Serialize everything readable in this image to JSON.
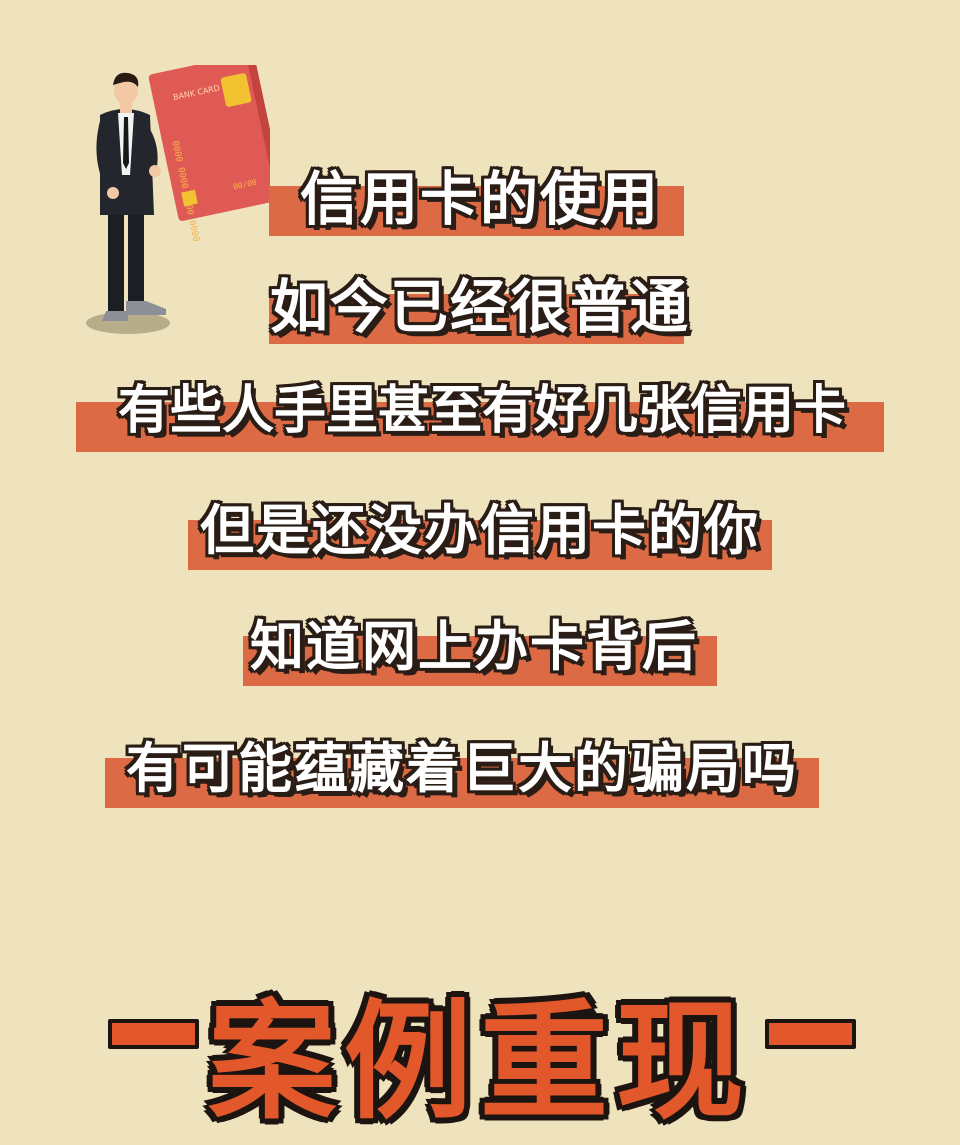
{
  "lines": [
    "信用卡的使用",
    "如今已经很普通",
    "有些人手里甚至有好几张信用卡",
    "但是还没办信用卡的你",
    "知道网上办卡背后",
    "有可能蕴藏着巨大的骗局吗"
  ],
  "headline": "案例重现",
  "card": {
    "bank_text": "BANK CARD",
    "number_row": "0000 0000 0000 0000",
    "expiry": "00/00"
  },
  "colors": {
    "background": "#efe3bd",
    "highlight": "#dc6a45",
    "headline": "#e2582a",
    "outline": "#1c1410"
  },
  "icons": [
    "businessman-holding-card-illustration"
  ]
}
